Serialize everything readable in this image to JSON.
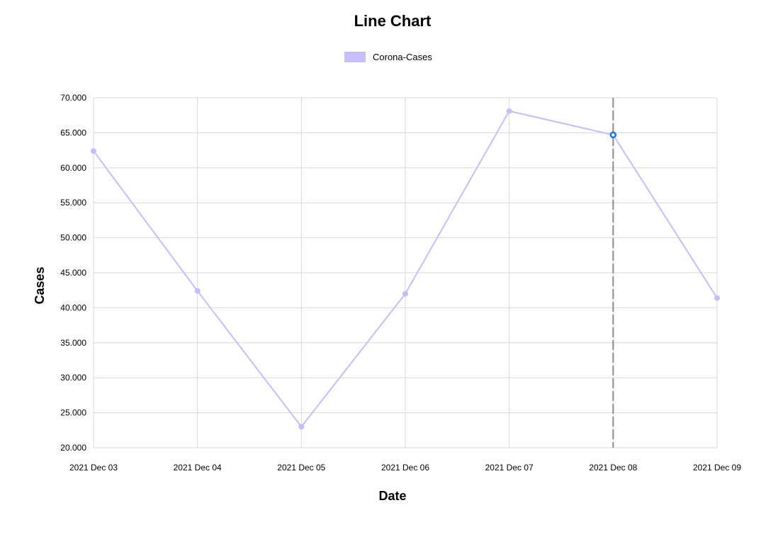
{
  "chart_data": {
    "type": "line",
    "title": "Line Chart",
    "xlabel": "Date",
    "ylabel": "Cases",
    "categories": [
      "2021 Dec 03",
      "2021 Dec 04",
      "2021 Dec 05",
      "2021 Dec 06",
      "2021 Dec 07",
      "2021 Dec 08",
      "2021 Dec 09"
    ],
    "yticks": [
      "20.000",
      "25.000",
      "30.000",
      "35.000",
      "40.000",
      "45.000",
      "50.000",
      "55.000",
      "60.000",
      "65.000",
      "70.000"
    ],
    "ylim": [
      20000,
      70000
    ],
    "grid": true,
    "legend_position": "top-center",
    "series": [
      {
        "name": "Corona-Cases",
        "color": "#c9bcfb",
        "values": [
          62400,
          42400,
          23000,
          42000,
          68100,
          64700,
          41400
        ]
      }
    ],
    "highlighted_point": {
      "category": "2021 Dec 08",
      "value": 64700
    },
    "highlight_color": "#1a73e8",
    "crosshair_color": "#8c8c8c",
    "grid_color": "#d9d9d9"
  }
}
